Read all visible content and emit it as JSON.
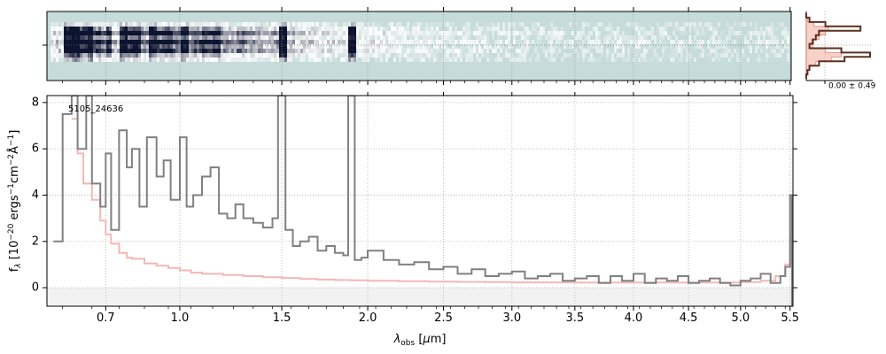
{
  "chart_data": [
    {
      "type": "image",
      "panel": "2d-spectrum",
      "colormap": [
        "#c6dcda",
        "#ffffff",
        "#0d1430"
      ],
      "x_ticks_hidden": true
    },
    {
      "type": "step",
      "panel": "cross-dispersion-profile",
      "label": "0.00 ± 0.49",
      "colors": {
        "profile": "#5a3022",
        "model": "#f3b3a5"
      },
      "profile": [
        0,
        0.05,
        0.3,
        0.85,
        0.2,
        0.15,
        0.1,
        0.05,
        0.55,
        1.0,
        0.6,
        0.2,
        0.05,
        0.02,
        0.0
      ],
      "model": [
        0,
        0.02,
        0.12,
        0.35,
        0.3,
        0.2,
        0.12,
        0.1,
        0.3,
        0.55,
        0.4,
        0.15,
        0.05,
        0.02,
        0.0
      ]
    },
    {
      "type": "line",
      "panel": "1d-spectrum",
      "annotation": "5105_24636",
      "xlabel": "λobs [μm]",
      "ylabel": "fλ [10⁻²⁰ ergs⁻¹cm⁻²Å⁻¹]",
      "xlim": [
        0.5,
        5.53
      ],
      "ylim": [
        -0.8,
        8.3
      ],
      "x_scale": "nonlinear (plotted against wavelength^0.5)",
      "x_ticks": [
        {
          "value": 0.7,
          "label": "0.7"
        },
        {
          "value": 1.0,
          "label": "1.0"
        },
        {
          "value": 1.5,
          "label": "1.5"
        },
        {
          "value": 2.0,
          "label": "2.0"
        },
        {
          "value": 2.5,
          "label": "2.5"
        },
        {
          "value": 3.0,
          "label": "3.0"
        },
        {
          "value": 3.5,
          "label": "3.5"
        },
        {
          "value": 4.0,
          "label": "4.0"
        },
        {
          "value": 4.5,
          "label": "4.5"
        },
        {
          "value": 5.0,
          "label": "5.0"
        },
        {
          "value": 5.5,
          "label": "5.5"
        }
      ],
      "y_ticks": [
        {
          "value": 0,
          "label": "0"
        },
        {
          "value": 2,
          "label": "2"
        },
        {
          "value": 4,
          "label": "4"
        },
        {
          "value": 6,
          "label": "6"
        },
        {
          "value": 8,
          "label": "8"
        }
      ],
      "grid": true,
      "colors": {
        "data": "#808080",
        "model": "#f4b8b4",
        "zero_band": "#f2f2f2"
      },
      "series": [
        {
          "role": "data",
          "x": [
            0.52,
            0.55,
            0.58,
            0.6,
            0.63,
            0.65,
            0.68,
            0.7,
            0.72,
            0.75,
            0.78,
            0.8,
            0.83,
            0.86,
            0.9,
            0.93,
            0.96,
            1.0,
            1.03,
            1.06,
            1.1,
            1.14,
            1.18,
            1.22,
            1.26,
            1.3,
            1.35,
            1.4,
            1.45,
            1.48,
            1.52,
            1.56,
            1.6,
            1.65,
            1.7,
            1.75,
            1.8,
            1.85,
            1.88,
            1.92,
            1.96,
            2.0,
            2.1,
            2.2,
            2.3,
            2.4,
            2.5,
            2.6,
            2.7,
            2.8,
            2.9,
            3.0,
            3.1,
            3.2,
            3.3,
            3.4,
            3.5,
            3.6,
            3.7,
            3.8,
            3.9,
            4.0,
            4.1,
            4.2,
            4.3,
            4.4,
            4.5,
            4.6,
            4.7,
            4.8,
            4.9,
            5.0,
            5.1,
            5.2,
            5.3,
            5.4,
            5.45,
            5.5,
            5.52
          ],
          "y": [
            2.0,
            7.5,
            8.3,
            6.0,
            8.3,
            4.5,
            3.5,
            5.8,
            2.5,
            6.8,
            5.2,
            6.0,
            3.5,
            6.5,
            4.8,
            5.5,
            3.8,
            6.5,
            3.5,
            4.0,
            4.8,
            5.2,
            3.2,
            3.0,
            3.6,
            3.0,
            2.8,
            2.6,
            3.0,
            8.3,
            2.5,
            1.8,
            2.0,
            2.2,
            1.6,
            1.8,
            1.5,
            1.4,
            8.3,
            1.2,
            1.3,
            1.6,
            1.2,
            1.0,
            1.1,
            0.8,
            0.9,
            0.6,
            0.8,
            0.5,
            0.6,
            0.7,
            0.4,
            0.5,
            0.6,
            0.3,
            0.4,
            0.5,
            0.2,
            0.5,
            0.3,
            0.6,
            0.2,
            0.4,
            0.3,
            0.5,
            0.2,
            0.3,
            0.4,
            0.2,
            0.1,
            0.3,
            0.4,
            0.6,
            0.2,
            0.5,
            0.9,
            4.0,
            -0.8
          ]
        },
        {
          "role": "model",
          "x": [
            0.58,
            0.6,
            0.62,
            0.65,
            0.68,
            0.7,
            0.72,
            0.75,
            0.78,
            0.8,
            0.85,
            0.9,
            0.95,
            1.0,
            1.05,
            1.1,
            1.2,
            1.3,
            1.4,
            1.5,
            1.6,
            1.7,
            1.8,
            1.9,
            2.0,
            2.2,
            2.4,
            2.6,
            2.8,
            3.0,
            3.5,
            4.0,
            4.5,
            5.0,
            5.2,
            5.35,
            5.45,
            5.5,
            5.52
          ],
          "y": [
            7.3,
            5.8,
            4.5,
            3.8,
            2.9,
            2.3,
            1.9,
            1.5,
            1.3,
            1.25,
            1.05,
            0.95,
            0.85,
            0.75,
            0.65,
            0.6,
            0.55,
            0.5,
            0.45,
            0.42,
            0.38,
            0.35,
            0.33,
            0.32,
            0.3,
            0.28,
            0.26,
            0.25,
            0.24,
            0.23,
            0.22,
            0.22,
            0.22,
            0.24,
            0.3,
            0.5,
            1.0,
            2.2,
            3.6
          ]
        }
      ]
    }
  ]
}
